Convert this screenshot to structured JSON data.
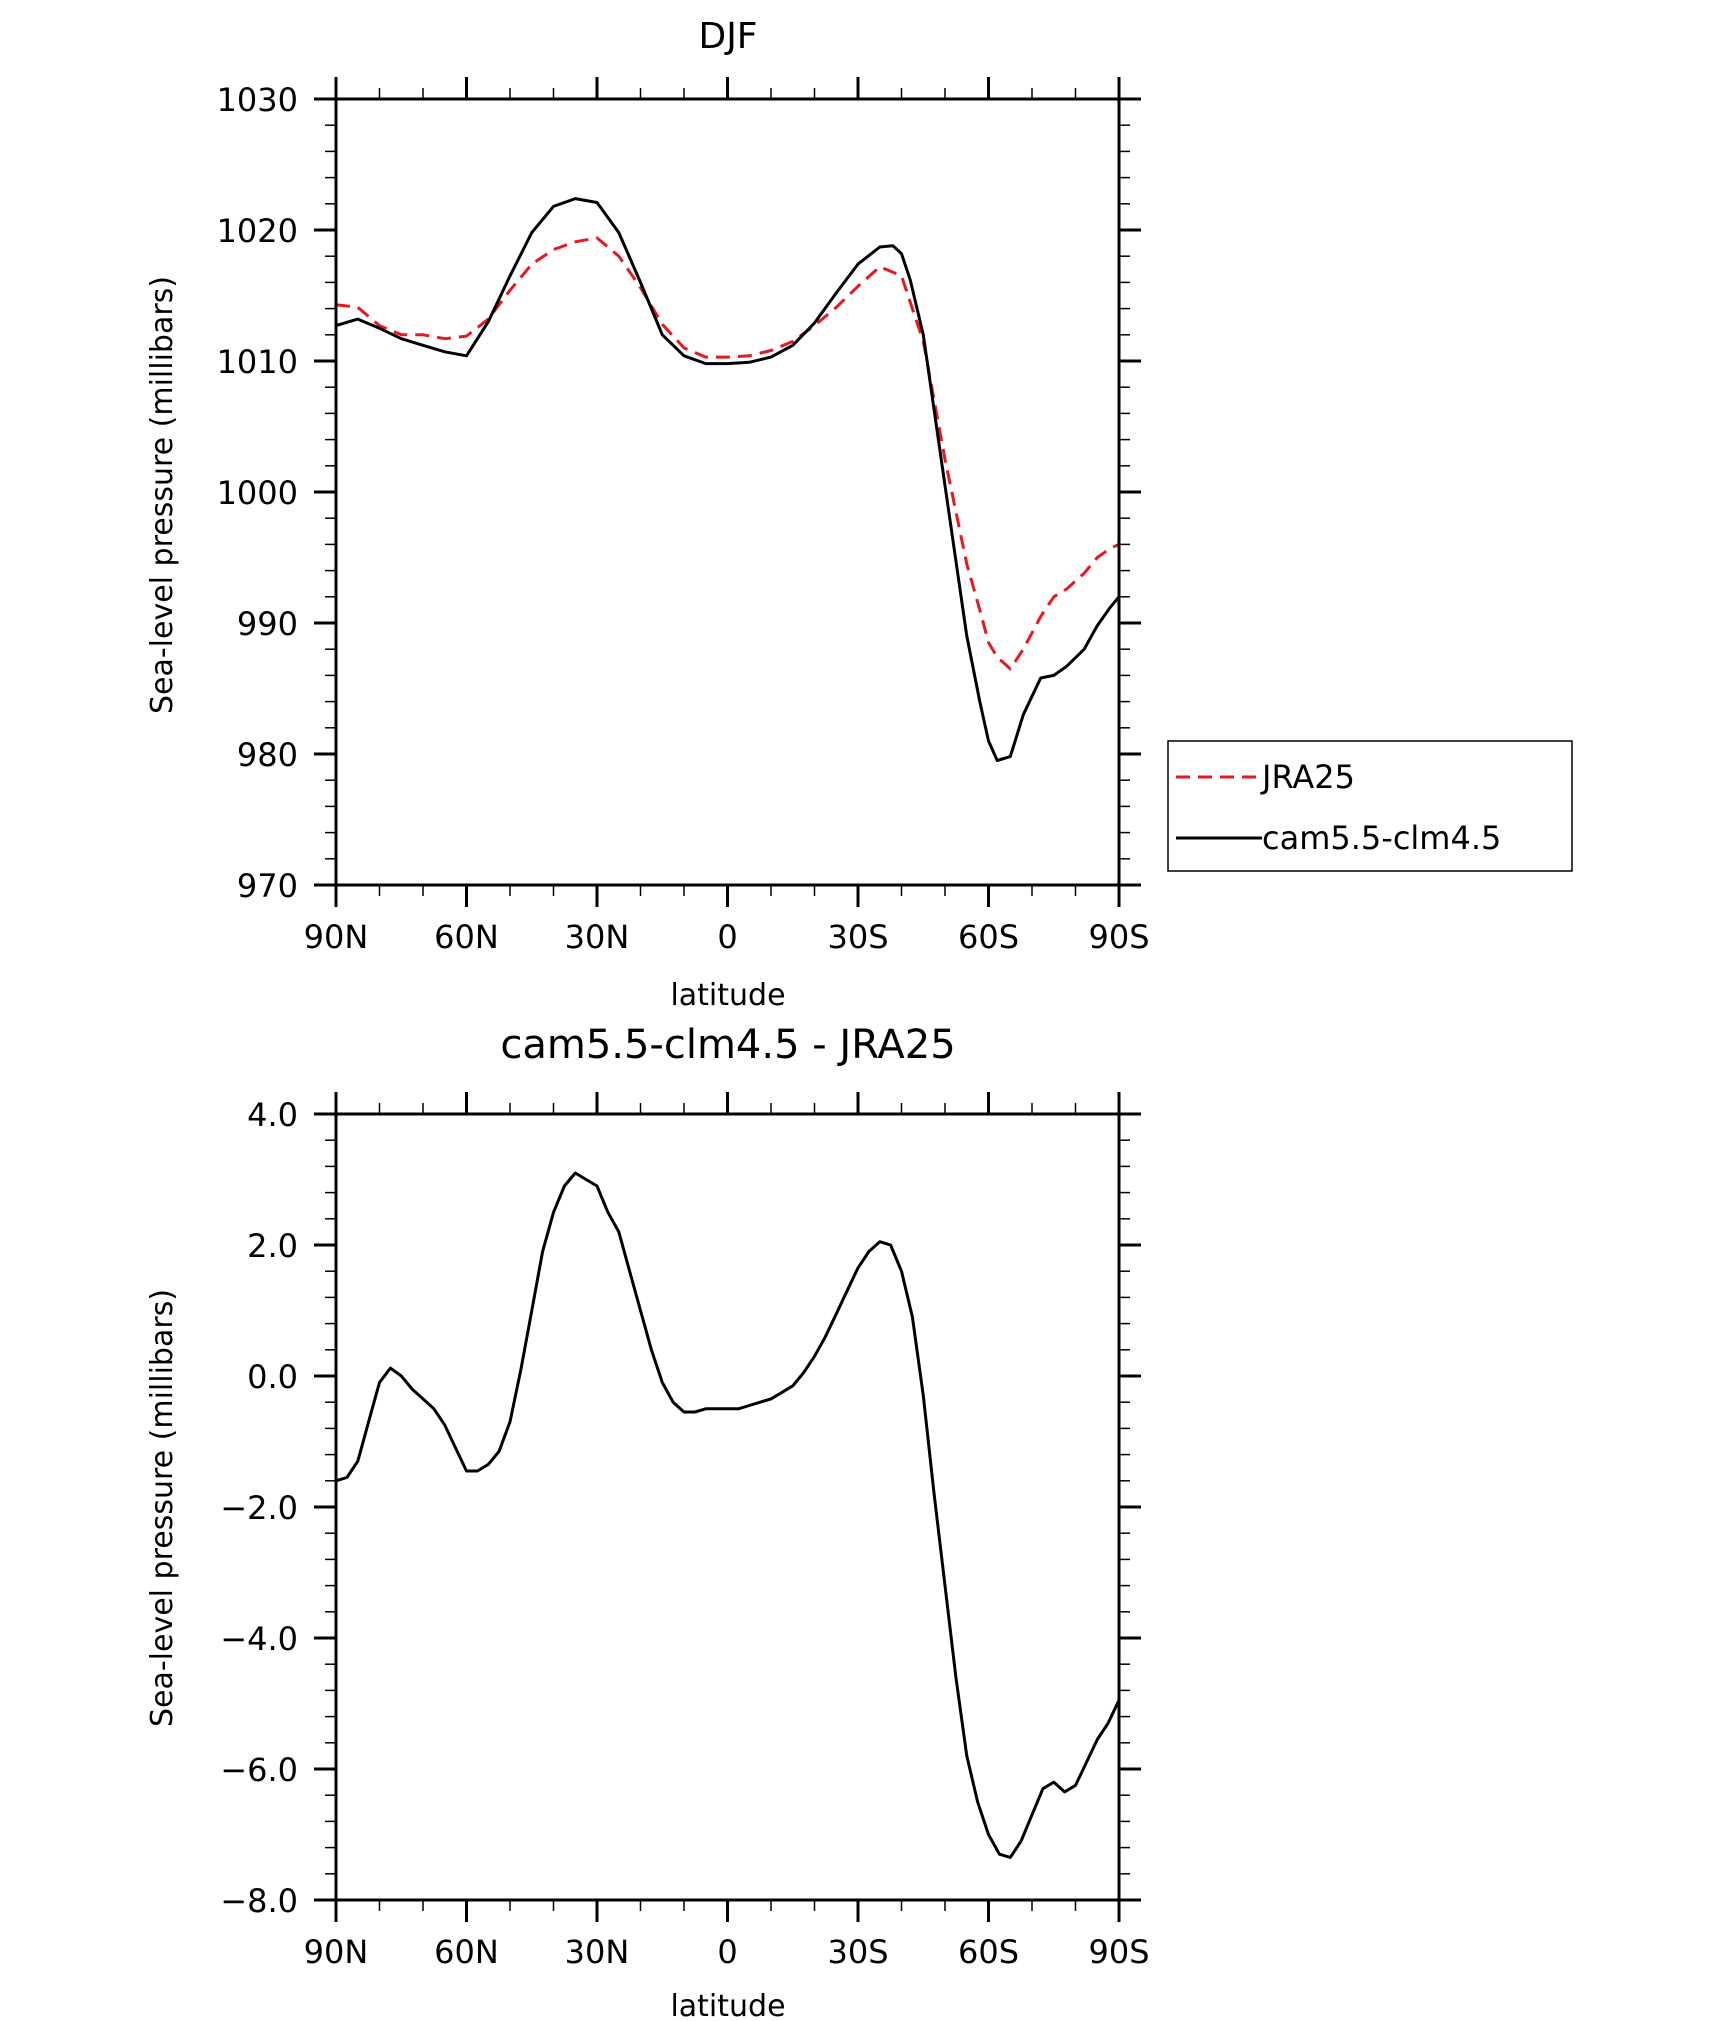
{
  "chart_data": [
    {
      "type": "line",
      "title": "DJF",
      "xlabel": "latitude",
      "ylabel": "Sea-level pressure (millibars)",
      "xlim": [
        90,
        -90
      ],
      "ylim": [
        970,
        1030
      ],
      "x_ticks": [
        90,
        60,
        30,
        0,
        -30,
        -60,
        -90
      ],
      "x_tick_labels": [
        "90N",
        "60N",
        "30N",
        "0",
        "30S",
        "60S",
        "90S"
      ],
      "y_ticks": [
        970,
        980,
        990,
        1000,
        1010,
        1020,
        1030
      ],
      "y_tick_labels": [
        "970",
        "980",
        "990",
        "1000",
        "1010",
        "1020",
        "1030"
      ],
      "legend_position": "right",
      "series": [
        {
          "name": "JRA25",
          "color": "#e8191e",
          "dash": "dashed",
          "x": [
            90,
            85,
            80,
            75,
            70,
            65,
            60,
            55,
            50,
            45,
            40,
            35,
            30,
            25,
            20,
            15,
            10,
            5,
            0,
            -5,
            -10,
            -15,
            -20,
            -25,
            -30,
            -35,
            -40,
            -45,
            -50,
            -55,
            -58,
            -60,
            -62,
            -65,
            -68,
            -72,
            -75,
            -78,
            -82,
            -85,
            -88,
            -90
          ],
          "y": [
            1014.3,
            1014.1,
            1012.7,
            1012.0,
            1012.0,
            1011.7,
            1011.9,
            1013.2,
            1015.4,
            1017.4,
            1018.5,
            1019.1,
            1019.4,
            1018.0,
            1015.6,
            1012.8,
            1011.0,
            1010.3,
            1010.3,
            1010.4,
            1010.8,
            1011.5,
            1012.7,
            1014.1,
            1015.7,
            1017.2,
            1016.5,
            1011.5,
            1002.5,
            994.5,
            991.0,
            988.5,
            987.4,
            986.5,
            988.0,
            990.5,
            992.0,
            992.6,
            993.8,
            995.0,
            995.7,
            996.0
          ]
        },
        {
          "name": "cam5.5-clm4.5",
          "color": "#000000",
          "dash": "solid",
          "x": [
            90,
            85,
            80,
            75,
            70,
            65,
            60,
            55,
            50,
            45,
            40,
            35,
            30,
            25,
            20,
            15,
            10,
            5,
            0,
            -5,
            -10,
            -15,
            -20,
            -25,
            -30,
            -35,
            -38,
            -40,
            -42,
            -45,
            -50,
            -55,
            -58,
            -60,
            -62,
            -65,
            -68,
            -72,
            -75,
            -78,
            -82,
            -85,
            -88,
            -90
          ],
          "y": [
            1012.7,
            1013.2,
            1012.5,
            1011.7,
            1011.2,
            1010.7,
            1010.4,
            1013.0,
            1016.5,
            1019.8,
            1021.8,
            1022.4,
            1022.1,
            1019.8,
            1016.0,
            1012.0,
            1010.4,
            1009.8,
            1009.8,
            1009.9,
            1010.3,
            1011.2,
            1012.9,
            1015.2,
            1017.4,
            1018.7,
            1018.8,
            1018.2,
            1016.2,
            1012.0,
            1000.5,
            989.0,
            984.0,
            981.0,
            979.5,
            979.8,
            983.0,
            985.8,
            986.0,
            986.7,
            988.0,
            989.8,
            991.2,
            992.0
          ]
        }
      ]
    },
    {
      "type": "line",
      "title": "cam5.5-clm4.5 - JRA25",
      "xlabel": "latitude",
      "ylabel": "Sea-level pressure (millibars)",
      "xlim": [
        90,
        -90
      ],
      "ylim": [
        -8,
        4
      ],
      "x_ticks": [
        90,
        60,
        30,
        0,
        -30,
        -60,
        -90
      ],
      "x_tick_labels": [
        "90N",
        "60N",
        "30N",
        "0",
        "30S",
        "60S",
        "90S"
      ],
      "y_ticks": [
        -8,
        -6,
        -4,
        -2,
        0,
        2,
        4
      ],
      "y_tick_labels": [
        "-8.0",
        "-6.0",
        "-4.0",
        "-2.0",
        "0.0",
        "2.0",
        "4.0"
      ],
      "series": [
        {
          "color": "#000000",
          "dash": "solid",
          "x": [
            90,
            87.5,
            85,
            82.5,
            80,
            77.5,
            75,
            72.5,
            70,
            67.5,
            65,
            62.5,
            60,
            57.5,
            55,
            52.5,
            50,
            47.5,
            45,
            42.5,
            40,
            37.5,
            35,
            32.5,
            30,
            27.5,
            25,
            22.5,
            20,
            17.5,
            15,
            12.5,
            10,
            7.5,
            5,
            2.5,
            0,
            -2.5,
            -5,
            -7.5,
            -10,
            -12.5,
            -15,
            -17.5,
            -20,
            -22.5,
            -25,
            -27.5,
            -30,
            -32.5,
            -35,
            -37.5,
            -40,
            -42.5,
            -45,
            -47.5,
            -50,
            -52.5,
            -55,
            -57.5,
            -60,
            -62.5,
            -65,
            -67.5,
            -70,
            -72.5,
            -75,
            -77.5,
            -80,
            -82.5,
            -85,
            -87.5,
            -90
          ],
          "y": [
            -1.6,
            -1.55,
            -1.3,
            -0.7,
            -0.1,
            0.12,
            0.0,
            -0.2,
            -0.35,
            -0.5,
            -0.75,
            -1.1,
            -1.45,
            -1.45,
            -1.35,
            -1.15,
            -0.7,
            0.1,
            1.0,
            1.9,
            2.5,
            2.9,
            3.1,
            3.0,
            2.9,
            2.5,
            2.2,
            1.6,
            1.0,
            0.4,
            -0.1,
            -0.4,
            -0.55,
            -0.55,
            -0.5,
            -0.5,
            -0.5,
            -0.5,
            -0.45,
            -0.4,
            -0.35,
            -0.25,
            -0.15,
            0.05,
            0.3,
            0.6,
            0.95,
            1.3,
            1.65,
            1.9,
            2.05,
            2.0,
            1.6,
            0.9,
            -0.3,
            -1.8,
            -3.2,
            -4.6,
            -5.8,
            -6.5,
            -7.0,
            -7.3,
            -7.35,
            -7.1,
            -6.7,
            -6.3,
            -6.2,
            -6.35,
            -6.25,
            -5.9,
            -5.55,
            -5.3,
            -4.95
          ]
        }
      ]
    }
  ]
}
